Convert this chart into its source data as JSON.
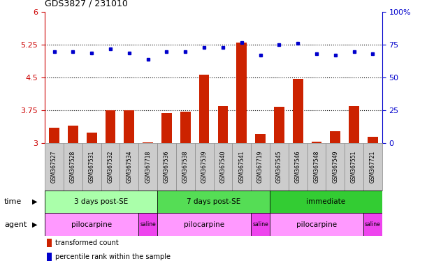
{
  "title": "GDS3827 / 231010",
  "samples": [
    "GSM367527",
    "GSM367528",
    "GSM367531",
    "GSM367532",
    "GSM367534",
    "GSM367718",
    "GSM367536",
    "GSM367538",
    "GSM367539",
    "GSM367540",
    "GSM367541",
    "GSM367719",
    "GSM367545",
    "GSM367546",
    "GSM367548",
    "GSM367549",
    "GSM367551",
    "GSM367721"
  ],
  "red_values": [
    3.35,
    3.4,
    3.25,
    3.75,
    3.75,
    3.02,
    3.7,
    3.72,
    4.57,
    3.85,
    5.3,
    3.22,
    3.83,
    4.48,
    3.04,
    3.28,
    3.85,
    3.15
  ],
  "blue_values": [
    70,
    70,
    69,
    72,
    69,
    64,
    70,
    70,
    73,
    73,
    77,
    67,
    75,
    76,
    68,
    67,
    70,
    68
  ],
  "ylim_left": [
    3.0,
    6.0
  ],
  "ylim_right": [
    0,
    100
  ],
  "yticks_left": [
    3.0,
    3.75,
    4.5,
    5.25,
    6.0
  ],
  "yticks_right": [
    0,
    25,
    50,
    75,
    100
  ],
  "ytick_left_labels": [
    "3",
    "3.75",
    "4.5",
    "5.25",
    "6"
  ],
  "ytick_right_labels": [
    "0",
    "25",
    "50",
    "75",
    "100%"
  ],
  "hlines": [
    3.75,
    4.5,
    5.25
  ],
  "time_groups": [
    {
      "label": "3 days post-SE",
      "start": 0,
      "end": 6,
      "color": "#AAFFAA"
    },
    {
      "label": "7 days post-SE",
      "start": 6,
      "end": 12,
      "color": "#55DD55"
    },
    {
      "label": "immediate",
      "start": 12,
      "end": 18,
      "color": "#33CC33"
    }
  ],
  "agent_groups": [
    {
      "label": "pilocarpine",
      "start": 0,
      "end": 5,
      "color": "#FF99FF"
    },
    {
      "label": "saline",
      "start": 5,
      "end": 6,
      "color": "#EE44EE"
    },
    {
      "label": "pilocarpine",
      "start": 6,
      "end": 11,
      "color": "#FF99FF"
    },
    {
      "label": "saline",
      "start": 11,
      "end": 12,
      "color": "#EE44EE"
    },
    {
      "label": "pilocarpine",
      "start": 12,
      "end": 17,
      "color": "#FF99FF"
    },
    {
      "label": "saline",
      "start": 17,
      "end": 18,
      "color": "#EE44EE"
    }
  ],
  "bar_color": "#CC2200",
  "dot_color": "#0000CC",
  "bar_bottom": 3.0,
  "background_color": "#FFFFFF",
  "left_axis_color": "#CC0000",
  "right_axis_color": "#0000CC",
  "label_box_color": "#CCCCCC",
  "label_box_edge": "#888888"
}
